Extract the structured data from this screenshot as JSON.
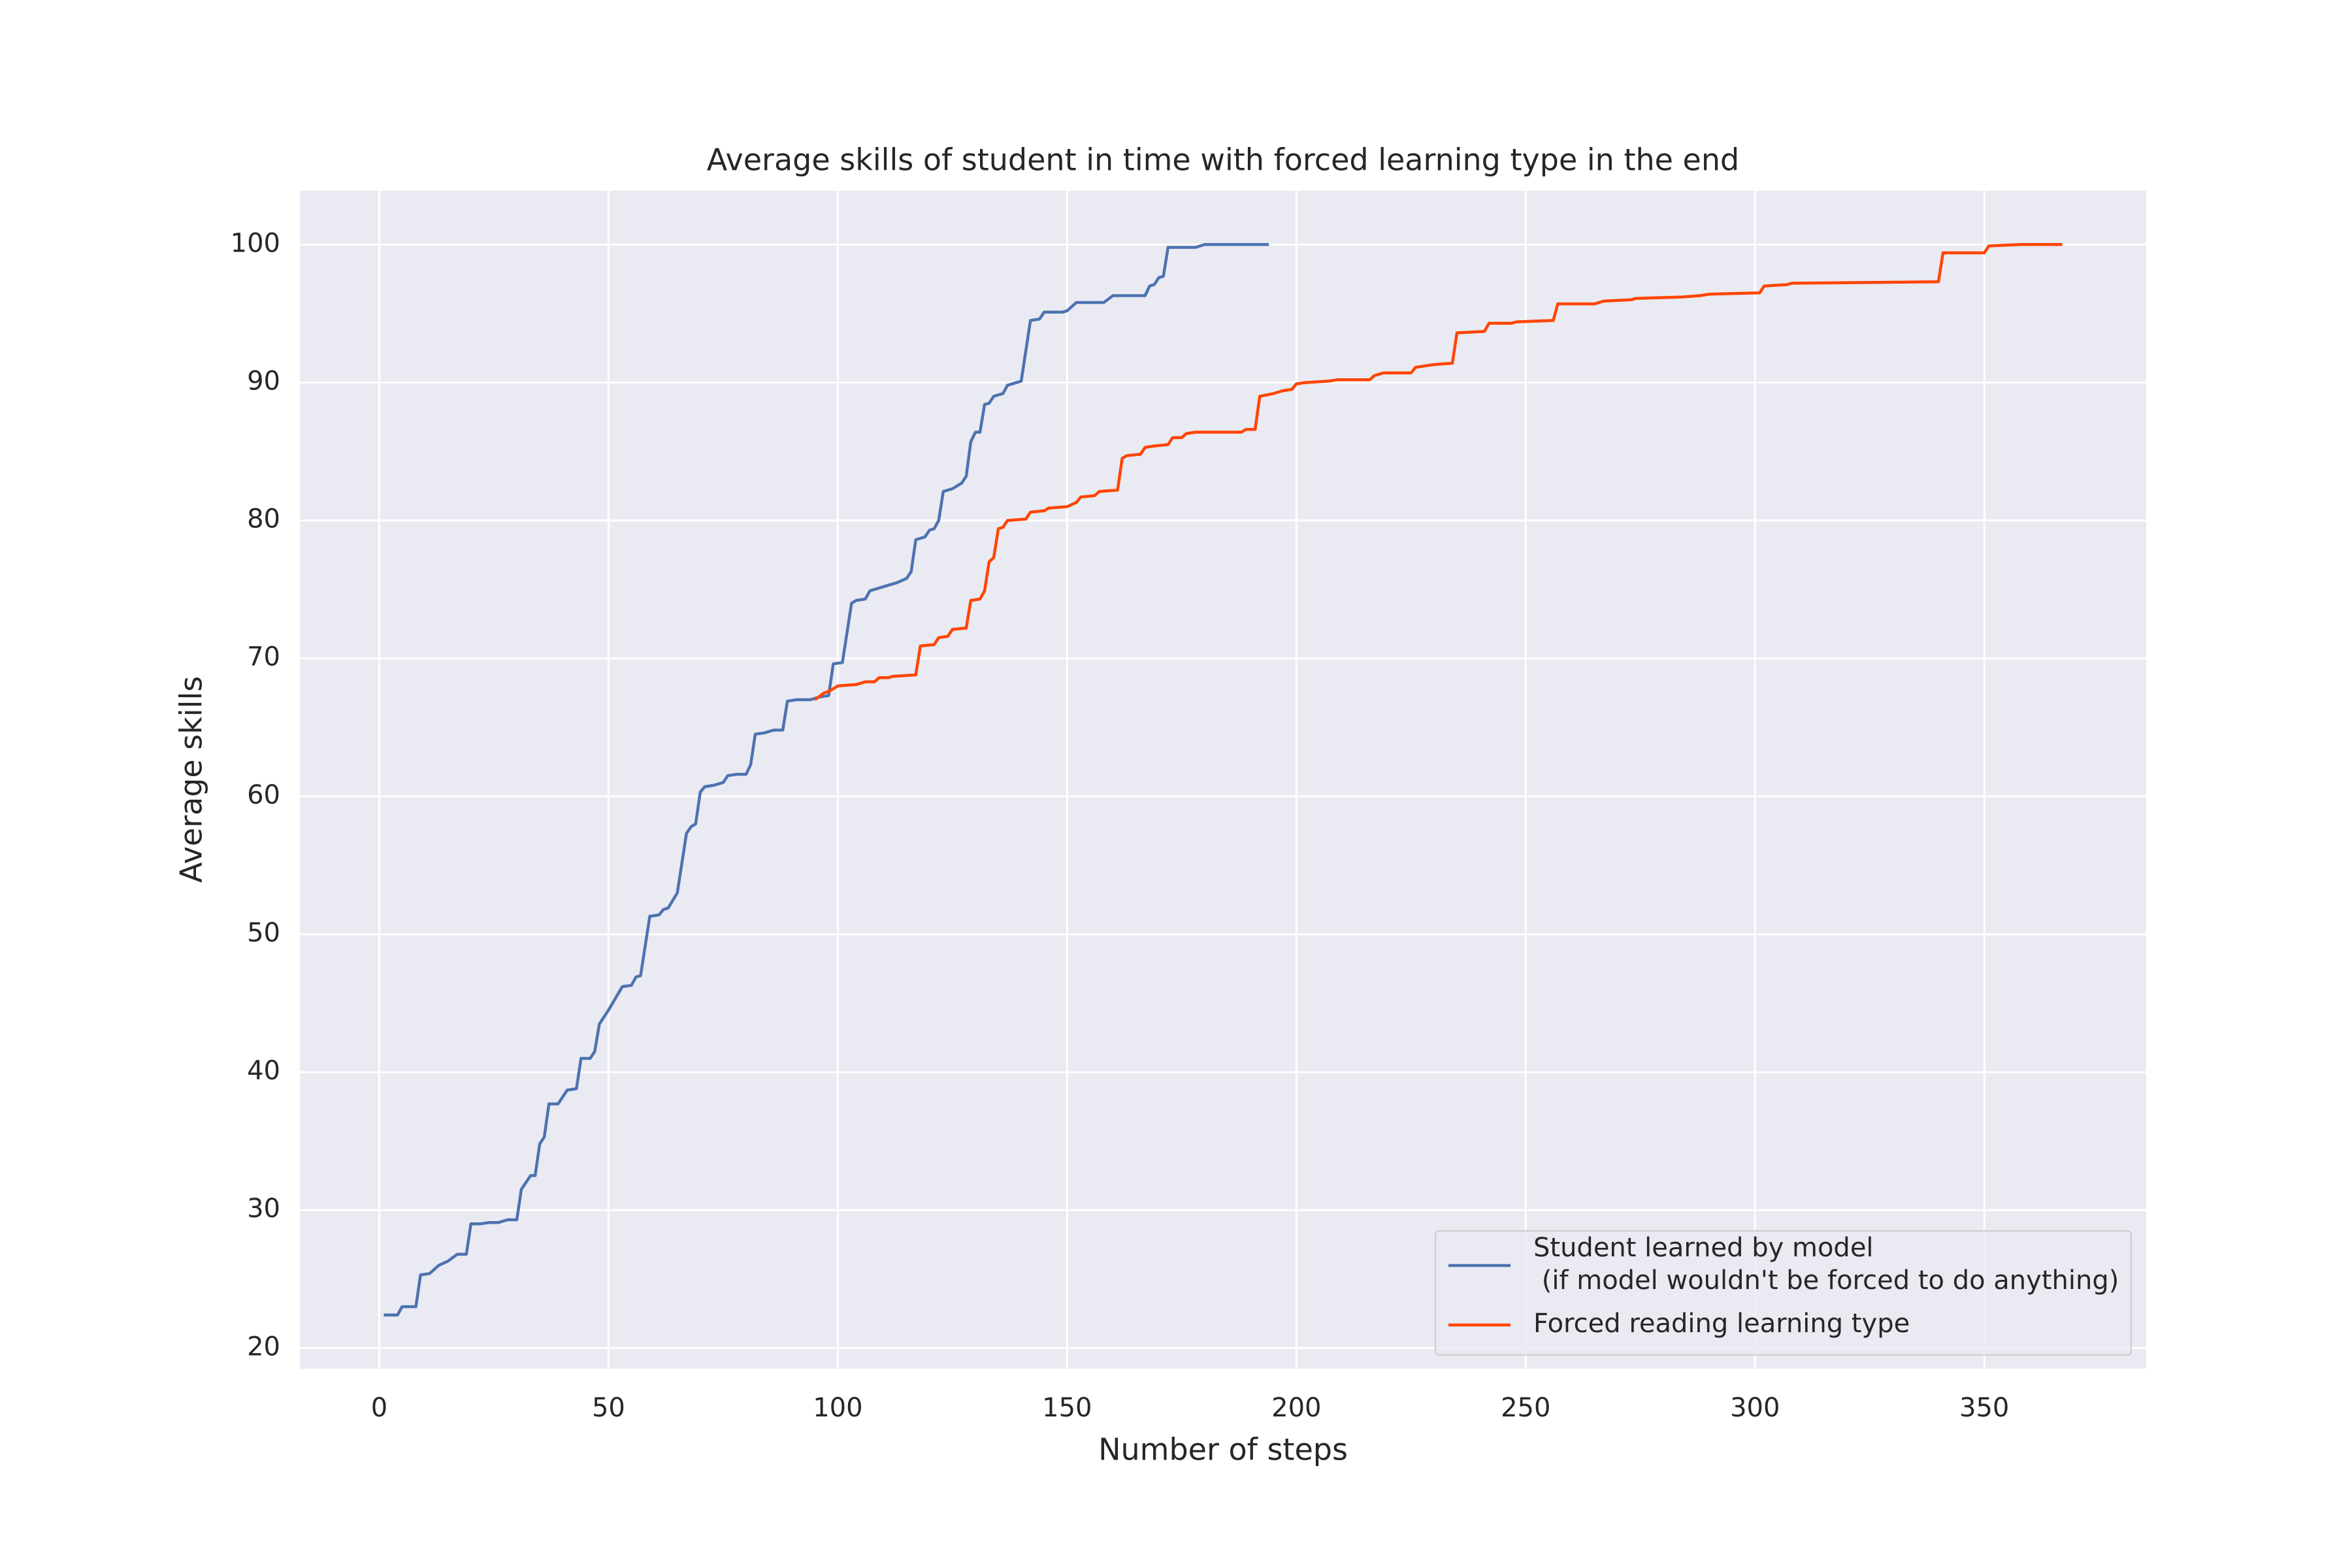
{
  "chart_data": {
    "type": "line",
    "title": "Average skills of student in time with forced learning type in the end",
    "x_label": "Number of steps",
    "y_label": "Average skills",
    "xlim": [
      -17.3,
      385.3
    ],
    "ylim": [
      18.5,
      103.9
    ],
    "xticks": [
      0,
      50,
      100,
      150,
      200,
      250,
      300,
      350
    ],
    "yticks": [
      20,
      30,
      40,
      50,
      60,
      70,
      80,
      90,
      100
    ],
    "grid": true,
    "legend_position": "lower right",
    "series": [
      {
        "name": "Student learned by model\n (if model wouldn't be forced to do anything)",
        "color": "#4c72b0",
        "x": [
          1,
          4,
          5,
          8,
          9,
          11,
          13,
          15,
          17,
          19,
          20,
          22,
          24,
          26,
          28,
          30,
          31,
          33,
          34,
          35,
          36,
          37,
          39,
          41,
          43,
          44,
          46,
          47,
          48,
          50,
          53,
          55,
          56,
          57,
          59,
          61,
          62,
          63,
          65,
          67,
          68,
          69,
          70,
          71,
          73,
          75,
          76,
          78,
          80,
          81,
          82,
          84,
          86,
          88,
          89,
          91,
          94,
          96,
          98,
          99,
          101,
          103,
          104,
          106,
          107,
          109,
          111,
          113,
          115,
          116,
          117,
          119,
          120,
          121,
          122,
          123,
          125,
          127,
          128,
          129,
          130,
          131,
          132,
          133,
          134,
          136,
          137,
          139,
          140,
          142,
          144,
          145,
          149,
          150,
          152,
          158,
          160,
          167,
          168,
          169,
          170,
          171,
          172,
          178,
          180,
          194
        ],
        "values": [
          22.4,
          22.4,
          23,
          23,
          25.3,
          25.4,
          26,
          26.3,
          26.8,
          26.8,
          29,
          29,
          29.1,
          29.1,
          29.3,
          29.3,
          31.5,
          32.5,
          32.5,
          34.8,
          35.3,
          37.7,
          37.7,
          38.7,
          38.8,
          41,
          41,
          41.5,
          43.5,
          44.5,
          46.2,
          46.3,
          46.9,
          47,
          51.3,
          51.4,
          51.8,
          51.9,
          53,
          57.3,
          57.8,
          58,
          60.3,
          60.7,
          60.8,
          61,
          61.5,
          61.6,
          61.6,
          62.3,
          64.5,
          64.6,
          64.8,
          64.8,
          66.9,
          67,
          67,
          67.2,
          67.3,
          69.6,
          69.7,
          74,
          74.2,
          74.3,
          74.9,
          75.1,
          75.3,
          75.5,
          75.8,
          76.3,
          78.6,
          78.8,
          79.3,
          79.4,
          80,
          82.1,
          82.3,
          82.7,
          83.2,
          85.7,
          86.4,
          86.4,
          88.4,
          88.5,
          89,
          89.2,
          89.8,
          90,
          90.1,
          94.5,
          94.6,
          95.1,
          95.1,
          95.2,
          95.8,
          95.8,
          96.3,
          96.3,
          97,
          97.1,
          97.6,
          97.7,
          99.8,
          99.8,
          100,
          100
        ]
      },
      {
        "name": "Forced reading learning type",
        "color": "#ff4500",
        "x": [
          95,
          97,
          98,
          100,
          104,
          106,
          108,
          109,
          111,
          112,
          117,
          118,
          121,
          122,
          124,
          125,
          128,
          129,
          131,
          132,
          133,
          134,
          135,
          136,
          137,
          141,
          142,
          145,
          146,
          150,
          152,
          153,
          156,
          157,
          161,
          162,
          163,
          166,
          167,
          169,
          172,
          173,
          175,
          176,
          178,
          188,
          189,
          191,
          192,
          195,
          197,
          199,
          200,
          202,
          207,
          209,
          216,
          217,
          219,
          225,
          226,
          230,
          234,
          235,
          241,
          242,
          247,
          248,
          256,
          257,
          265,
          267,
          273,
          274,
          284,
          288,
          290,
          301,
          302,
          307,
          308,
          340,
          341,
          350,
          351,
          358,
          367
        ],
        "values": [
          67,
          67.5,
          67.6,
          68,
          68.1,
          68.3,
          68.3,
          68.6,
          68.6,
          68.7,
          68.8,
          70.9,
          71,
          71.5,
          71.6,
          72.1,
          72.2,
          74.2,
          74.3,
          74.9,
          77,
          77.3,
          79.4,
          79.5,
          80,
          80.1,
          80.6,
          80.7,
          80.9,
          81,
          81.3,
          81.7,
          81.8,
          82.1,
          82.2,
          84.5,
          84.7,
          84.8,
          85.3,
          85.4,
          85.5,
          86,
          86,
          86.3,
          86.4,
          86.4,
          86.6,
          86.6,
          89,
          89.2,
          89.4,
          89.5,
          89.9,
          90,
          90.1,
          90.2,
          90.2,
          90.5,
          90.7,
          90.7,
          91.1,
          91.3,
          91.4,
          93.6,
          93.7,
          94.3,
          94.3,
          94.4,
          94.5,
          95.7,
          95.7,
          95.9,
          96,
          96.1,
          96.2,
          96.3,
          96.4,
          96.5,
          97,
          97.1,
          97.2,
          97.3,
          99.4,
          99.4,
          99.9,
          100,
          100
        ]
      }
    ]
  }
}
